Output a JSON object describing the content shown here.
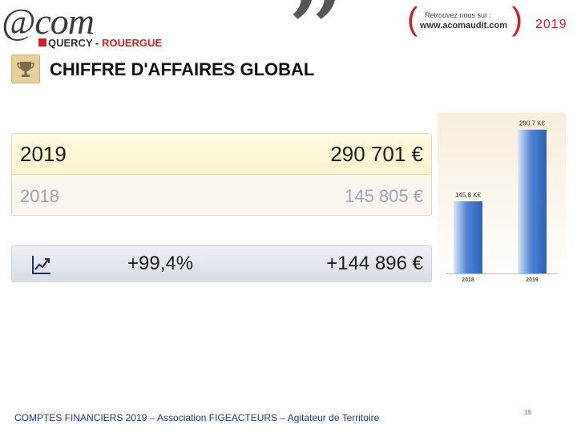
{
  "header": {
    "logo_main": "@com",
    "logo_sub_a": "QUERCY",
    "logo_sub_sep": " - ",
    "logo_sub_b": "ROUERGUE",
    "promo_line1": "Retrouvez nous sur :",
    "promo_line2": "www.acomaudit.com",
    "year": "2019"
  },
  "title": "CHIFFRE D'AFFAIRES GLOBAL",
  "amounts": [
    {
      "year": "2019",
      "value": "290 701 €"
    },
    {
      "year": "2018",
      "value": "145 805 €"
    }
  ],
  "variation": {
    "percent": "+99,4%",
    "amount": "+144 896 €",
    "icon": "trend-up-icon"
  },
  "chart_data": {
    "type": "bar",
    "categories": [
      "2018",
      "2019"
    ],
    "values": [
      145.8,
      290.7
    ],
    "data_labels": [
      "145,8 K€",
      "290,7 K€"
    ],
    "ylim": [
      0,
      300
    ],
    "grid": false,
    "legend": "none",
    "bar_color": "#4f86d6"
  },
  "footer": {
    "text": "COMPTES FINANCIERS 2019 – Association FIGEACTEURS – Agitateur de Territoire",
    "page": "39"
  },
  "colors": {
    "accent_red": "#c71f2c",
    "title": "#111111",
    "footer": "#1f3a77"
  }
}
